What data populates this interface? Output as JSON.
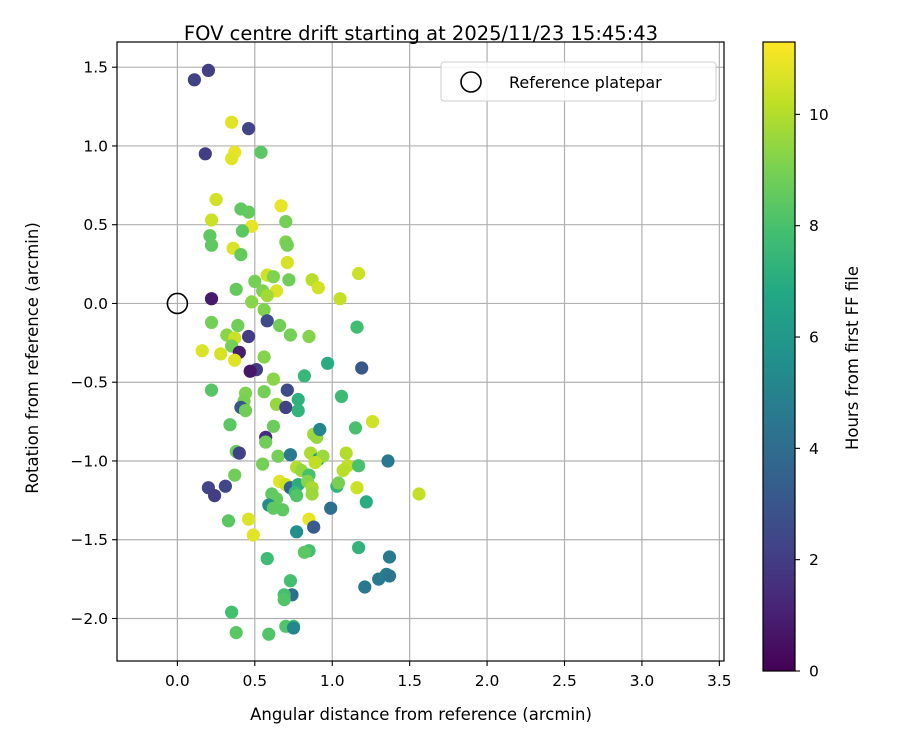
{
  "chart_data": {
    "type": "scatter",
    "title": "FOV centre drift starting at 2025/11/23 15:45:43",
    "xlabel": "Angular distance from reference (arcmin)",
    "ylabel": "Rotation from reference (arcmin)",
    "xlim": [
      -0.39,
      3.53
    ],
    "ylim": [
      -2.27,
      1.66
    ],
    "xticks": [
      0.0,
      0.5,
      1.0,
      1.5,
      2.0,
      2.5,
      3.0,
      3.5
    ],
    "xtick_labels": [
      "0.0",
      "0.5",
      "1.0",
      "1.5",
      "2.0",
      "2.5",
      "3.0",
      "3.5"
    ],
    "yticks": [
      -2.0,
      -1.5,
      -1.0,
      -0.5,
      0.0,
      0.5,
      1.0,
      1.5
    ],
    "ytick_labels": [
      "−2.0",
      "−1.5",
      "−1.0",
      "−0.5",
      "0.0",
      "0.5",
      "1.0",
      "1.5"
    ],
    "grid": true,
    "legend": {
      "position": "top-right",
      "entries": [
        "Reference platepar"
      ]
    },
    "reference_point": {
      "x": 0.0,
      "y": 0.0,
      "label": "Reference platepar"
    },
    "colorbar": {
      "label": "Hours from first FF file",
      "min": 0,
      "max": 11.3,
      "ticks": [
        0,
        2,
        4,
        6,
        8,
        10
      ],
      "tick_labels": [
        "0",
        "2",
        "4",
        "6",
        "8",
        "10"
      ],
      "colormap": "viridis"
    },
    "points": [
      [
        0.11,
        1.42,
        2.2
      ],
      [
        0.2,
        1.48,
        2.1
      ],
      [
        0.46,
        1.11,
        2.3
      ],
      [
        0.18,
        0.95,
        2.0
      ],
      [
        0.35,
        1.15,
        10.8
      ],
      [
        0.37,
        0.96,
        10.9
      ],
      [
        0.35,
        0.92,
        10.8
      ],
      [
        0.54,
        0.96,
        8.4
      ],
      [
        0.25,
        0.66,
        10.5
      ],
      [
        0.67,
        0.62,
        10.9
      ],
      [
        0.41,
        0.6,
        8.5
      ],
      [
        0.46,
        0.58,
        8.6
      ],
      [
        0.22,
        0.53,
        10.4
      ],
      [
        0.48,
        0.49,
        10.9
      ],
      [
        0.7,
        0.52,
        8.9
      ],
      [
        0.21,
        0.43,
        8.5
      ],
      [
        0.42,
        0.46,
        8.4
      ],
      [
        0.7,
        0.39,
        9.1
      ],
      [
        0.71,
        0.37,
        8.9
      ],
      [
        0.22,
        0.37,
        8.5
      ],
      [
        0.36,
        0.35,
        10.7
      ],
      [
        0.41,
        0.31,
        8.6
      ],
      [
        0.71,
        0.26,
        10.6
      ],
      [
        0.58,
        0.18,
        10.5
      ],
      [
        0.62,
        0.17,
        9.1
      ],
      [
        0.72,
        0.15,
        8.8
      ],
      [
        0.87,
        0.15,
        10.1
      ],
      [
        0.5,
        0.14,
        8.9
      ],
      [
        0.91,
        0.1,
        10.5
      ],
      [
        0.38,
        0.09,
        8.6
      ],
      [
        0.55,
        0.08,
        9.1
      ],
      [
        0.64,
        0.08,
        10.7
      ],
      [
        0.58,
        0.05,
        9.7
      ],
      [
        1.05,
        0.03,
        10.3
      ],
      [
        1.17,
        0.19,
        10.4
      ],
      [
        0.48,
        0.01,
        9.3
      ],
      [
        0.56,
        -0.04,
        9.1
      ],
      [
        0.22,
        0.03,
        0.8
      ],
      [
        0.22,
        -0.12,
        8.9
      ],
      [
        0.39,
        -0.14,
        8.8
      ],
      [
        0.66,
        -0.14,
        8.8
      ],
      [
        0.58,
        -0.11,
        2.6
      ],
      [
        0.73,
        -0.2,
        8.9
      ],
      [
        0.85,
        -0.21,
        9.2
      ],
      [
        0.32,
        -0.2,
        9.3
      ],
      [
        0.37,
        -0.22,
        10.4
      ],
      [
        0.46,
        -0.21,
        2.0
      ],
      [
        0.35,
        -0.27,
        8.9
      ],
      [
        0.16,
        -0.3,
        10.7
      ],
      [
        0.4,
        -0.31,
        0.9
      ],
      [
        0.28,
        -0.32,
        10.6
      ],
      [
        0.37,
        -0.36,
        10.8
      ],
      [
        0.51,
        -0.42,
        2.0
      ],
      [
        0.47,
        -0.43,
        0.7
      ],
      [
        0.56,
        -0.34,
        9.2
      ],
      [
        0.62,
        -0.48,
        9.3
      ],
      [
        0.82,
        -0.46,
        7.5
      ],
      [
        0.97,
        -0.38,
        7.0
      ],
      [
        1.16,
        -0.15,
        7.8
      ],
      [
        1.19,
        -0.41,
        3.1
      ],
      [
        0.22,
        -0.55,
        8.3
      ],
      [
        0.56,
        -0.56,
        8.9
      ],
      [
        0.44,
        -0.57,
        9.1
      ],
      [
        0.71,
        -0.55,
        2.6
      ],
      [
        0.78,
        -0.61,
        7.2
      ],
      [
        1.06,
        -0.59,
        7.6
      ],
      [
        0.43,
        -0.62,
        9.0
      ],
      [
        0.41,
        -0.66,
        3.1
      ],
      [
        0.64,
        -0.64,
        9.5
      ],
      [
        0.7,
        -0.66,
        2.2
      ],
      [
        0.44,
        -0.68,
        8.8
      ],
      [
        0.78,
        -0.68,
        7.3
      ],
      [
        0.34,
        -0.77,
        8.4
      ],
      [
        0.62,
        -0.78,
        8.7
      ],
      [
        1.15,
        -0.79,
        8.0
      ],
      [
        1.26,
        -0.75,
        10.5
      ],
      [
        0.57,
        -0.85,
        1.5
      ],
      [
        0.57,
        -0.88,
        8.8
      ],
      [
        0.88,
        -0.83,
        9.7
      ],
      [
        0.9,
        -0.85,
        9.5
      ],
      [
        0.92,
        -0.8,
        5.2
      ],
      [
        0.38,
        -0.94,
        8.7
      ],
      [
        0.4,
        -0.95,
        2.2
      ],
      [
        0.55,
        -1.02,
        8.9
      ],
      [
        0.65,
        -0.97,
        8.9
      ],
      [
        0.73,
        -0.96,
        4.6
      ],
      [
        0.86,
        -0.95,
        9.9
      ],
      [
        0.91,
        -0.99,
        6.2
      ],
      [
        0.94,
        -0.97,
        9.6
      ],
      [
        0.89,
        -1.01,
        10.2
      ],
      [
        1.09,
        -0.95,
        10.0
      ],
      [
        1.1,
        -1.03,
        10.2
      ],
      [
        1.17,
        -1.03,
        8.0
      ],
      [
        1.36,
        -1.0,
        4.5
      ],
      [
        1.07,
        -1.06,
        10.1
      ],
      [
        0.77,
        -1.04,
        10.0
      ],
      [
        0.8,
        -1.06,
        9.5
      ],
      [
        0.85,
        -1.09,
        8.0
      ],
      [
        0.2,
        -1.17,
        2.3
      ],
      [
        0.24,
        -1.22,
        2.0
      ],
      [
        0.31,
        -1.16,
        2.4
      ],
      [
        0.37,
        -1.09,
        8.8
      ],
      [
        0.66,
        -1.13,
        10.8
      ],
      [
        0.7,
        -1.15,
        10.4
      ],
      [
        0.73,
        -1.17,
        3.4
      ],
      [
        0.78,
        -1.15,
        7.0
      ],
      [
        0.84,
        -1.13,
        9.2
      ],
      [
        0.87,
        -1.17,
        9.8
      ],
      [
        0.87,
        -1.21,
        9.6
      ],
      [
        0.76,
        -1.2,
        7.5
      ],
      [
        0.61,
        -1.21,
        8.5
      ],
      [
        0.64,
        -1.24,
        8.6
      ],
      [
        0.77,
        -1.22,
        8.2
      ],
      [
        1.03,
        -1.16,
        7.3
      ],
      [
        1.04,
        -1.14,
        9.0
      ],
      [
        1.16,
        -1.17,
        10.4
      ],
      [
        1.56,
        -1.21,
        10.3
      ],
      [
        0.59,
        -1.28,
        5.5
      ],
      [
        0.62,
        -1.3,
        8.5
      ],
      [
        0.68,
        -1.31,
        8.5
      ],
      [
        0.46,
        -1.37,
        10.7
      ],
      [
        0.33,
        -1.38,
        8.4
      ],
      [
        0.49,
        -1.47,
        10.8
      ],
      [
        0.85,
        -1.37,
        10.9
      ],
      [
        0.88,
        -1.42,
        3.3
      ],
      [
        0.99,
        -1.3,
        4.1
      ],
      [
        1.22,
        -1.26,
        7.0
      ],
      [
        0.77,
        -1.45,
        5.6
      ],
      [
        0.85,
        -1.57,
        7.9
      ],
      [
        0.82,
        -1.58,
        8.4
      ],
      [
        1.17,
        -1.55,
        7.3
      ],
      [
        1.37,
        -1.61,
        4.6
      ],
      [
        0.58,
        -1.62,
        7.7
      ],
      [
        0.73,
        -1.76,
        7.9
      ],
      [
        0.74,
        -1.85,
        4.1
      ],
      [
        0.69,
        -1.85,
        7.9
      ],
      [
        0.69,
        -1.88,
        8.2
      ],
      [
        1.21,
        -1.8,
        4.5
      ],
      [
        1.3,
        -1.75,
        4.6
      ],
      [
        1.35,
        -1.72,
        4.8
      ],
      [
        1.37,
        -1.73,
        4.4
      ],
      [
        0.35,
        -1.96,
        7.9
      ],
      [
        0.7,
        -2.05,
        8.2
      ],
      [
        0.75,
        -2.05,
        8.0
      ],
      [
        0.75,
        -2.06,
        5.2
      ],
      [
        0.38,
        -2.09,
        8.4
      ],
      [
        0.59,
        -2.1,
        8.2
      ]
    ]
  }
}
